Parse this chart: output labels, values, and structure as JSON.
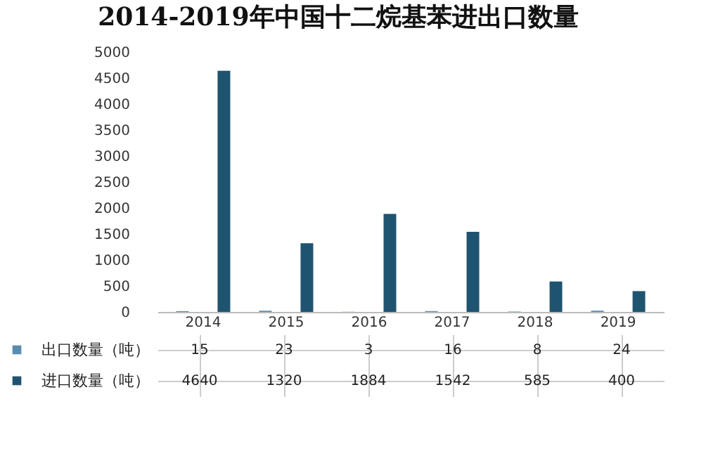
{
  "chart_data": {
    "type": "bar",
    "title": "2014-2019年中国十二烷基苯进出口数量",
    "categories": [
      "2014",
      "2015",
      "2016",
      "2017",
      "2018",
      "2019"
    ],
    "series": [
      {
        "name": "出口数量（吨）",
        "color": "#5a8cb0",
        "values": [
          15,
          23,
          3,
          16,
          8,
          24
        ]
      },
      {
        "name": "进口数量（吨）",
        "color": "#1f5470",
        "values": [
          4640,
          1320,
          1884,
          1542,
          585,
          400
        ]
      }
    ],
    "ylim": [
      0,
      5000
    ],
    "yticks": [
      0,
      500,
      1000,
      1500,
      2000,
      2500,
      3000,
      3500,
      4000,
      4500,
      5000
    ],
    "data_labels": true,
    "legend": "bottom"
  }
}
